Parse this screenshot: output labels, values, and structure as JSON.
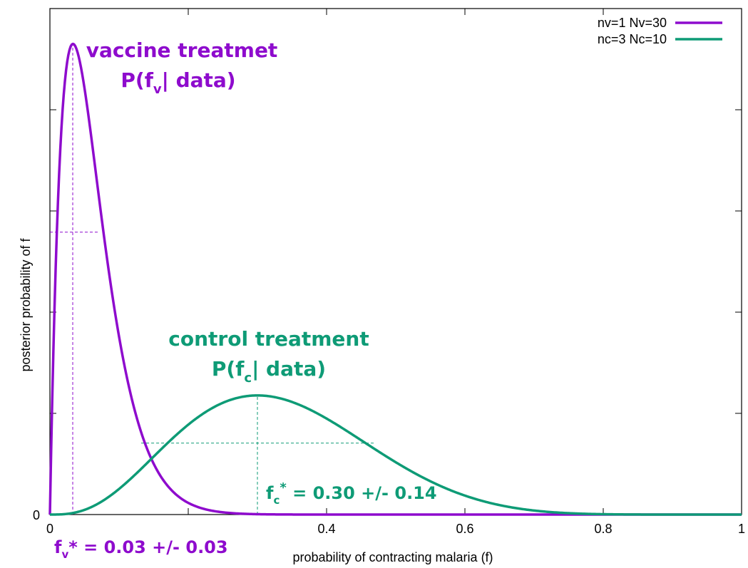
{
  "chart_data": {
    "type": "line",
    "xlabel": "probability of contracting malaria (f)",
    "ylabel": "posterior probability of f",
    "xlim": [
      0,
      1
    ],
    "x_ticks": [
      0,
      0.2,
      0.4,
      0.6,
      0.8,
      1
    ],
    "x_tick_labels": [
      "0",
      "",
      "0.4",
      "0.6",
      "0.8",
      "1"
    ],
    "y_tick_labels": [
      "0"
    ],
    "grid": false,
    "legend_position": "top-right",
    "series": [
      {
        "name": "nv=1 Nv=30",
        "color": "#8e0bcd",
        "successes": 1,
        "trials": 30,
        "mode": 0.033,
        "sigma": 0.03
      },
      {
        "name": "nc=3 Nc=10",
        "color": "#0e9b76",
        "successes": 3,
        "trials": 10,
        "mode": 0.3,
        "sigma": 0.14
      }
    ],
    "annotations": {
      "vaccine_title": "vaccine treatmet",
      "vaccine_formula_prefix": "P(f",
      "vaccine_formula_sub": "v",
      "vaccine_formula_suffix": "| data)",
      "control_title": "control treatment",
      "control_formula_prefix": "P(f",
      "control_formula_sub": "c",
      "control_formula_suffix": "| data)",
      "fv_label_f": "f",
      "fv_label_sub": "v",
      "fv_label_value": "* = 0.03 +/- 0.03",
      "fc_label_f": "f",
      "fc_label_sub": "c",
      "fc_label_star": "*",
      "fc_label_value": " = 0.30 +/- 0.14"
    }
  }
}
